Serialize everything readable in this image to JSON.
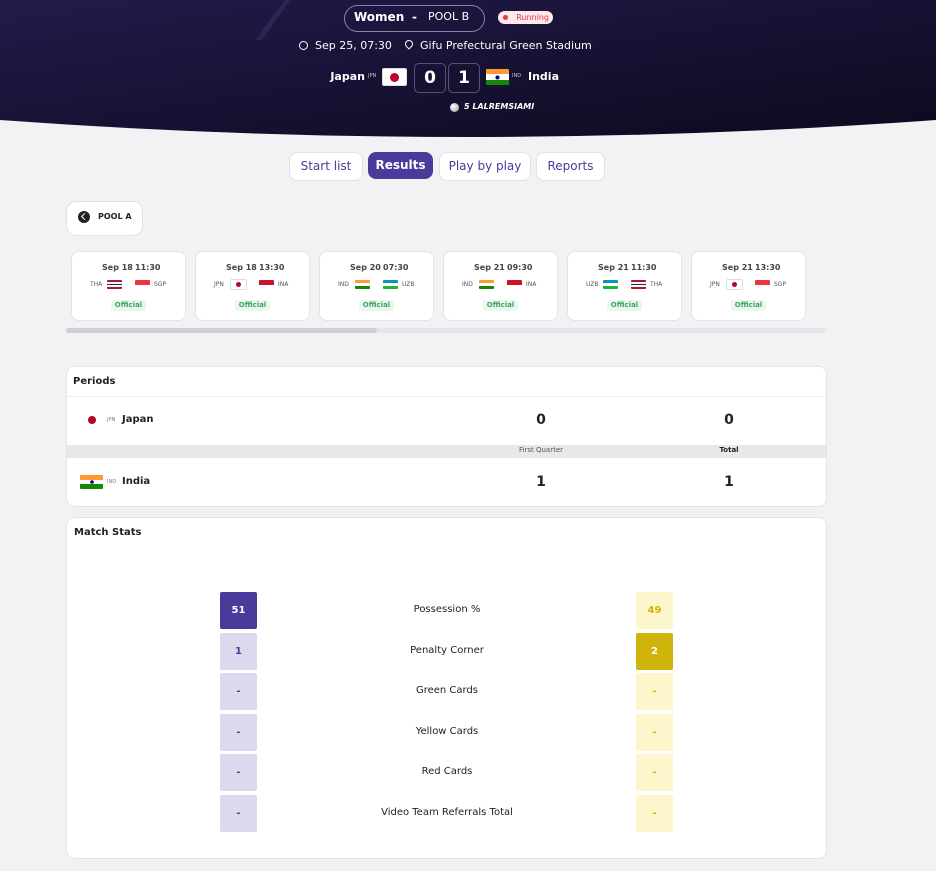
{
  "header": {
    "gender": "Women",
    "separator": "-",
    "pool": "POOL B",
    "status": "Running",
    "datetime": "Sep 25, 07:30",
    "venue": "Gifu Prefectural Green Stadium",
    "home": {
      "name": "Japan",
      "code": "JPN",
      "score": 0,
      "flag": {
        "stripes": [
          "#ffffff"
        ],
        "disc": "#bc002d"
      }
    },
    "away": {
      "name": "India",
      "code": "IND",
      "score": 1,
      "flag": {
        "stripes": [
          "#ff9933",
          "#ffffff",
          "#138808"
        ],
        "disc": "#000080"
      }
    },
    "scorer": "5 LALREMSIAMI"
  },
  "tabs": {
    "items": [
      "Start list",
      "Results",
      "Play by play",
      "Reports"
    ],
    "active": 1
  },
  "pool_button": "POOL A",
  "matches": [
    {
      "date": "Sep 18",
      "time": "11:30",
      "status": "Official",
      "home": {
        "code": "THA",
        "flag": {
          "stripes": [
            "#a51931",
            "#f4f5f8",
            "#2d2a4a",
            "#f4f5f8",
            "#a51931"
          ]
        }
      },
      "away": {
        "code": "SGP",
        "flag": {
          "stripes": [
            "#ef3340",
            "#ffffff"
          ]
        }
      }
    },
    {
      "date": "Sep 18",
      "time": "13:30",
      "status": "Official",
      "home": {
        "code": "JPN",
        "flag": {
          "stripes": [
            "#ffffff"
          ],
          "disc": "#bc002d"
        }
      },
      "away": {
        "code": "INA",
        "flag": {
          "stripes": [
            "#ce1126",
            "#ffffff"
          ]
        }
      }
    },
    {
      "date": "Sep 20",
      "time": "07:30",
      "status": "Official",
      "home": {
        "code": "IND",
        "flag": {
          "stripes": [
            "#ff9933",
            "#ffffff",
            "#138808"
          ]
        }
      },
      "away": {
        "code": "UZB",
        "flag": {
          "stripes": [
            "#0099b5",
            "#ffffff",
            "#1eb53a"
          ]
        }
      }
    },
    {
      "date": "Sep 21",
      "time": "09:30",
      "status": "Official",
      "home": {
        "code": "IND",
        "flag": {
          "stripes": [
            "#ff9933",
            "#ffffff",
            "#138808"
          ]
        }
      },
      "away": {
        "code": "INA",
        "flag": {
          "stripes": [
            "#ce1126",
            "#ffffff"
          ]
        }
      }
    },
    {
      "date": "Sep 21",
      "time": "11:30",
      "status": "Official",
      "home": {
        "code": "UZB",
        "flag": {
          "stripes": [
            "#0099b5",
            "#ffffff",
            "#1eb53a"
          ]
        }
      },
      "away": {
        "code": "THA",
        "flag": {
          "stripes": [
            "#a51931",
            "#f4f5f8",
            "#2d2a4a",
            "#f4f5f8",
            "#a51931"
          ]
        }
      }
    },
    {
      "date": "Sep 21",
      "time": "13:30",
      "status": "Official",
      "home": {
        "code": "JPN",
        "flag": {
          "stripes": [
            "#ffffff"
          ],
          "disc": "#bc002d"
        }
      },
      "away": {
        "code": "SGP",
        "flag": {
          "stripes": [
            "#ef3340",
            "#ffffff"
          ]
        }
      }
    }
  ],
  "periods": {
    "title": "Periods",
    "columns": [
      "First Quarter",
      "Total"
    ],
    "rows": [
      {
        "name": "Japan",
        "code": "JPN",
        "values": [
          0,
          0
        ],
        "flag": {
          "stripes": [
            "#ffffff"
          ],
          "disc": "#bc002d"
        }
      },
      {
        "name": "India",
        "code": "IND",
        "values": [
          1,
          1
        ],
        "flag": {
          "stripes": [
            "#ff9933",
            "#ffffff",
            "#138808"
          ],
          "disc": "#000080"
        }
      }
    ]
  },
  "match_stats": {
    "title": "Match Stats",
    "rows": [
      {
        "label": "Possession %",
        "home": 51,
        "away": 49
      },
      {
        "label": "Penalty Corner",
        "home": 1,
        "away": 2
      },
      {
        "label": "Green Cards",
        "home": "-",
        "away": "-"
      },
      {
        "label": "Yellow Cards",
        "home": "-",
        "away": "-"
      },
      {
        "label": "Red Cards",
        "home": "-",
        "away": "-"
      },
      {
        "label": "Video Team Referrals Total",
        "home": "-",
        "away": "-"
      }
    ]
  }
}
